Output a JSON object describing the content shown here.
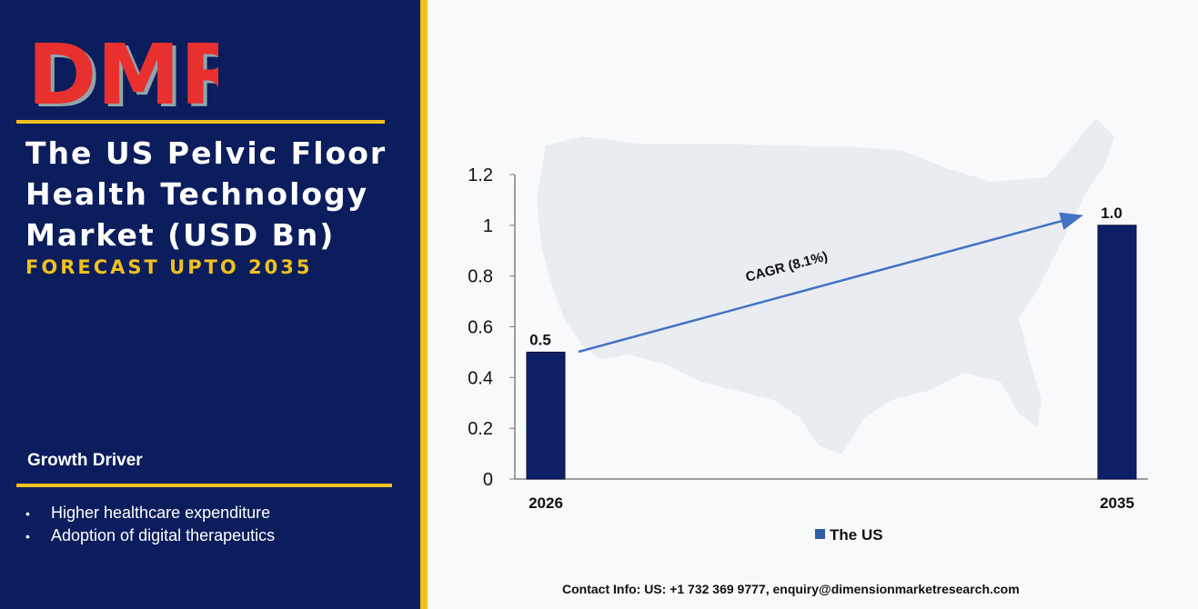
{
  "header": {
    "logo": "DMR",
    "title_lines": [
      "The US Pelvic Floor",
      "Health Technology",
      "Market (USD Bn)"
    ],
    "subtitle": "FORECAST UPTO 2035"
  },
  "growth_driver": {
    "heading": "Growth Driver",
    "items": [
      "Higher healthcare expenditure",
      "Adoption of digital therapeutics"
    ]
  },
  "footer": {
    "contact": "Contact Info: US: +1 732 369 9777, enquiry@dimensionmarketresearch.com"
  },
  "colors": {
    "panel": "#0b1d5c",
    "accent": "#f0c020",
    "bar": "#0d1f66",
    "arrow": "#4472c4",
    "logo_red": "#e8312f",
    "logo_grey": "#9fb5b3"
  },
  "chart_data": {
    "type": "bar",
    "categories": [
      "2026",
      "2035"
    ],
    "series": [
      {
        "name": "The US",
        "values": [
          0.5,
          1.0
        ]
      }
    ],
    "data_labels": [
      "0.5",
      "1.0"
    ],
    "yticks": [
      "0",
      "0.2",
      "0.4",
      "0.6",
      "0.8",
      "1",
      "1.2"
    ],
    "ylim": [
      0,
      1.2
    ],
    "annotation": "CAGR (8.1%)",
    "legend_position": "bottom",
    "grid": false
  }
}
